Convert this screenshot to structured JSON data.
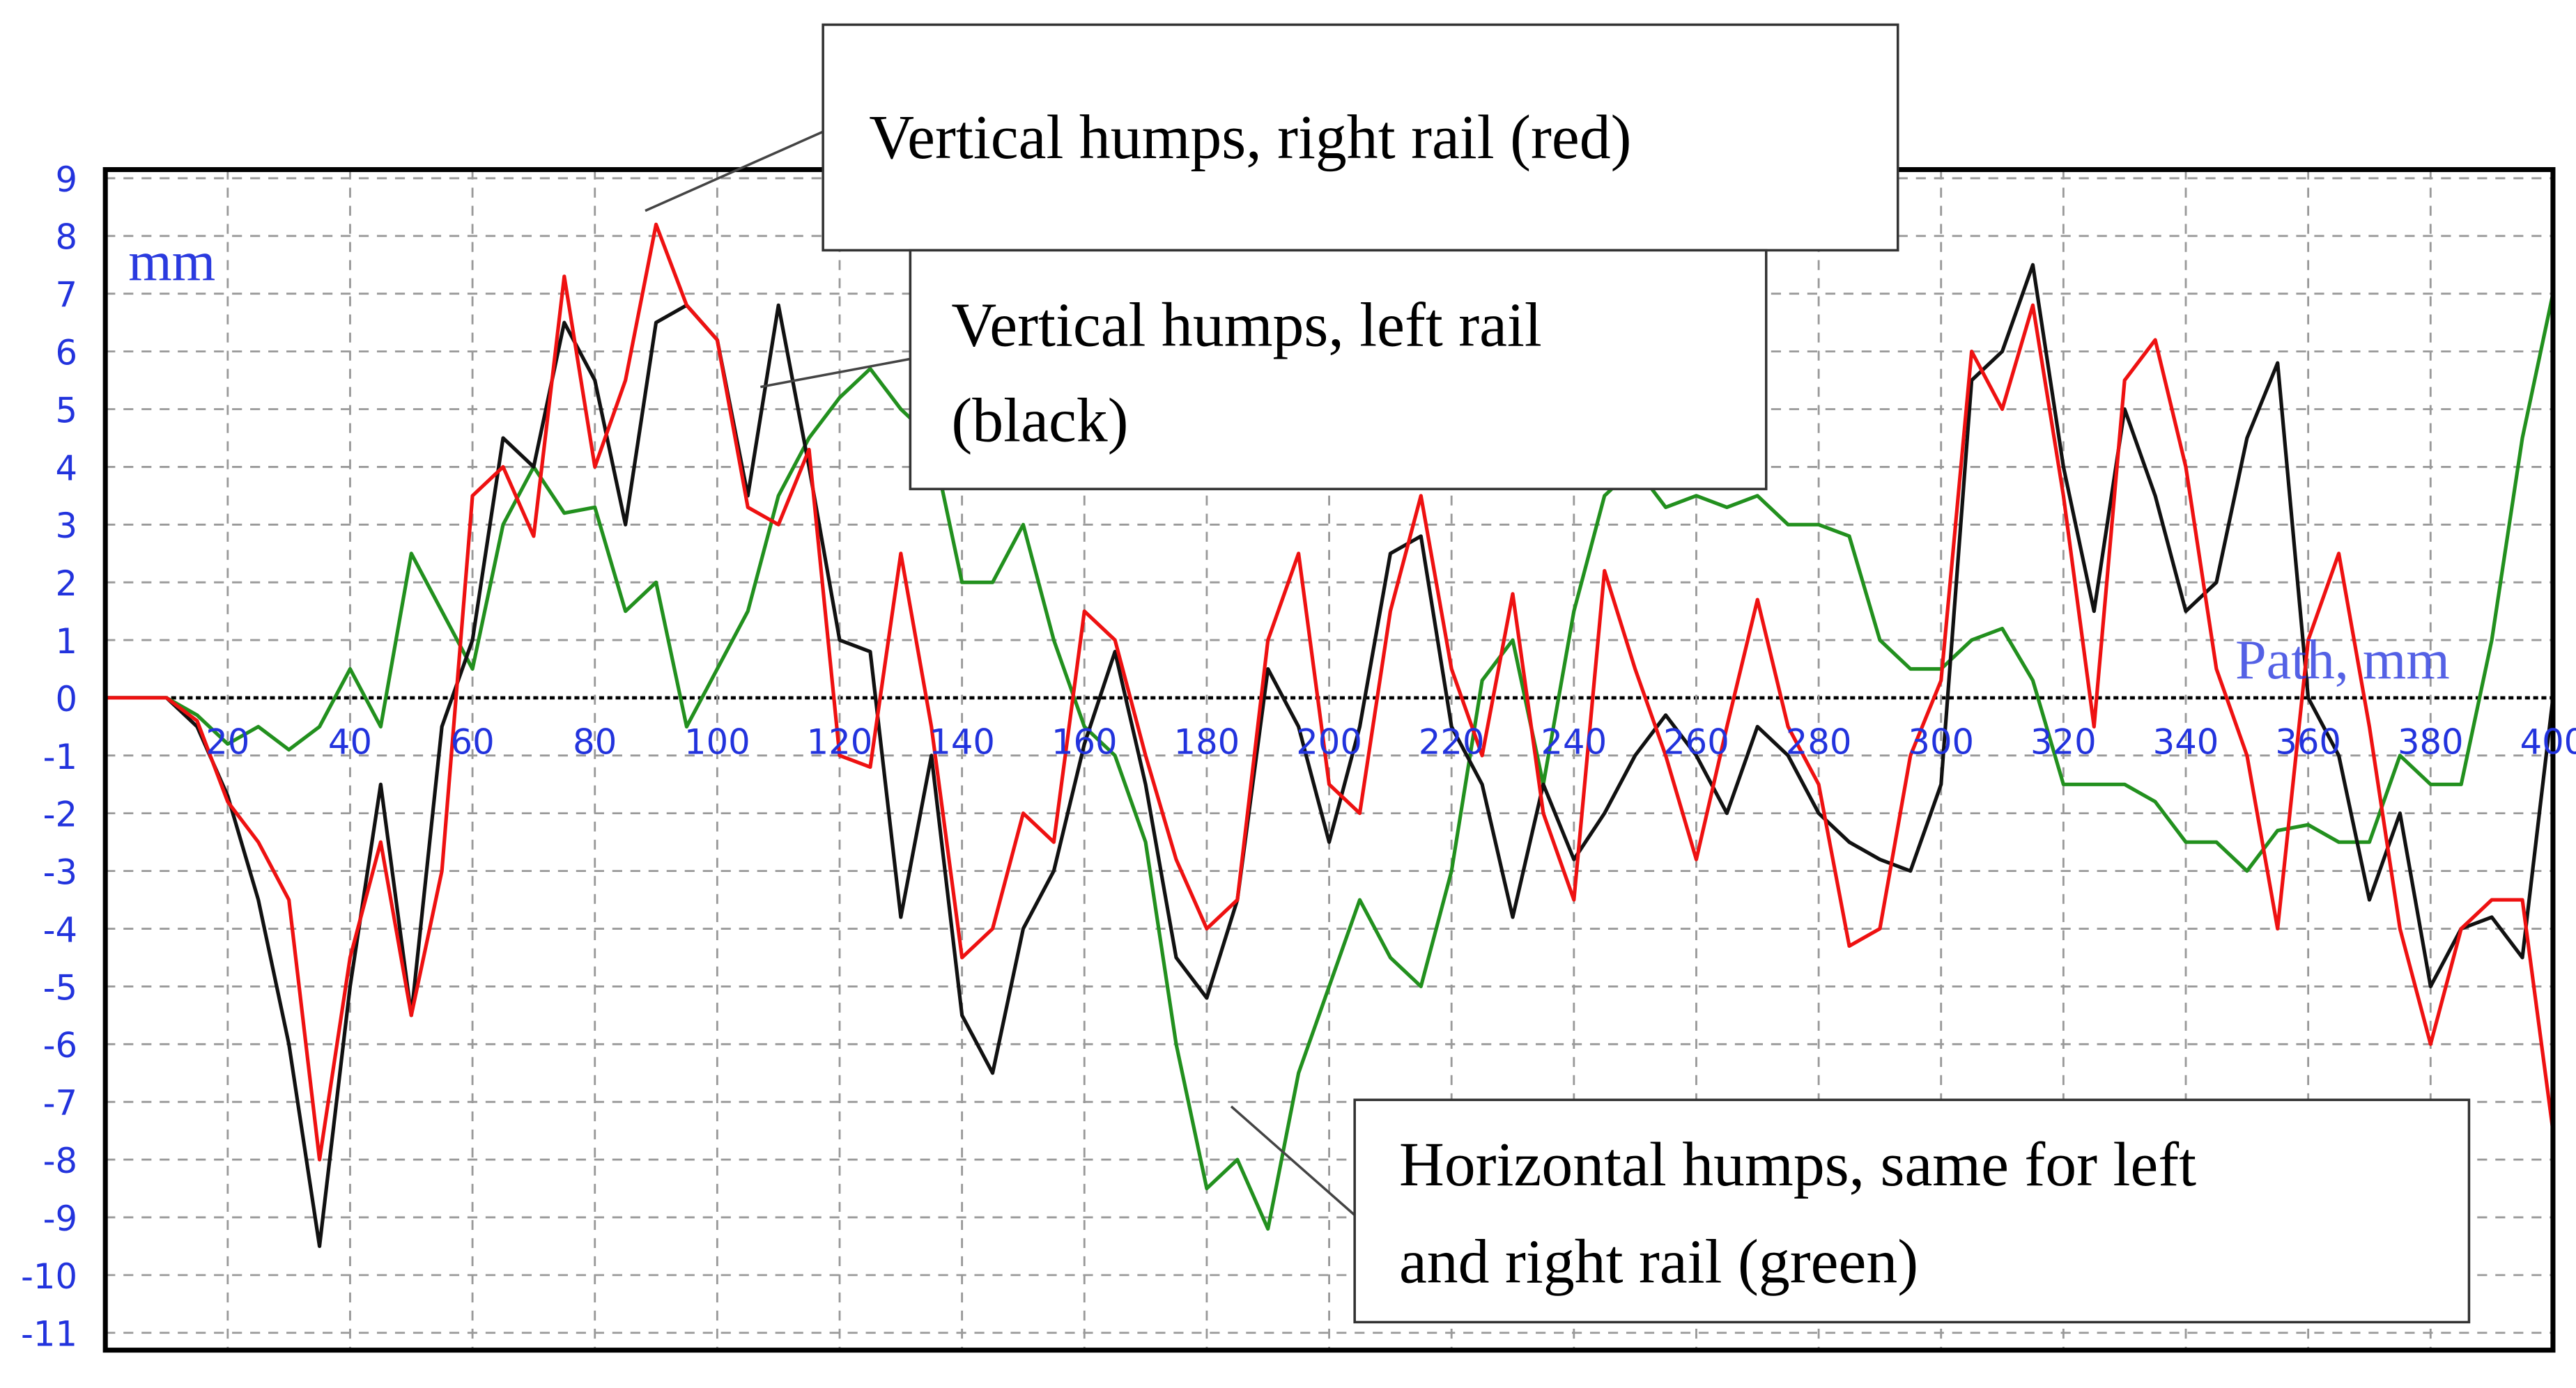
{
  "chart_data": {
    "type": "line",
    "ylabel": "mm",
    "xlabel": "Path, mm",
    "xlim": [
      0,
      400
    ],
    "ylim": [
      -11.3,
      9.15
    ],
    "xticks": [
      20,
      40,
      60,
      80,
      100,
      120,
      140,
      160,
      180,
      200,
      220,
      240,
      260,
      280,
      300,
      320,
      340,
      360,
      380,
      400
    ],
    "yticks": [
      -11,
      -10,
      -9,
      -8,
      -7,
      -6,
      -5,
      -4,
      -3,
      -2,
      -1,
      0,
      1,
      2,
      3,
      4,
      5,
      6,
      7,
      8,
      9
    ],
    "grid": true,
    "x": [
      0,
      5,
      10,
      15,
      20,
      25,
      30,
      35,
      40,
      45,
      50,
      55,
      60,
      65,
      70,
      75,
      80,
      85,
      90,
      95,
      100,
      105,
      110,
      115,
      120,
      125,
      130,
      135,
      140,
      145,
      150,
      155,
      160,
      165,
      170,
      175,
      180,
      185,
      190,
      195,
      200,
      205,
      210,
      215,
      220,
      225,
      230,
      235,
      240,
      245,
      250,
      255,
      260,
      265,
      270,
      275,
      280,
      285,
      290,
      295,
      300,
      305,
      310,
      315,
      320,
      325,
      330,
      335,
      340,
      345,
      350,
      355,
      360,
      365,
      370,
      375,
      380,
      385,
      390,
      395,
      400
    ],
    "series": [
      {
        "color": "#22901e",
        "values": [
          0,
          0,
          0,
          -0.3,
          -0.8,
          -0.5,
          -0.9,
          -0.5,
          0.5,
          -0.5,
          2.5,
          1.5,
          0.5,
          3.0,
          4.0,
          3.2,
          3.3,
          1.5,
          2.0,
          -0.5,
          0.5,
          1.5,
          3.5,
          4.5,
          5.2,
          5.7,
          5.0,
          4.5,
          2.0,
          2.0,
          3.0,
          1.0,
          -0.5,
          -1.0,
          -2.5,
          -6.0,
          -8.5,
          -8.0,
          -9.2,
          -6.5,
          -5.0,
          -3.5,
          -4.5,
          -5.0,
          -3.0,
          0.3,
          1.0,
          -1.5,
          1.5,
          3.5,
          4.0,
          3.3,
          3.5,
          3.3,
          3.5,
          3.0,
          3.0,
          2.8,
          1.0,
          0.5,
          0.5,
          1.0,
          1.2,
          0.3,
          -1.5,
          -1.5,
          -1.5,
          -1.8,
          -2.5,
          -2.5,
          -3.0,
          -2.3,
          -2.2,
          -2.5,
          -2.5,
          -1.0,
          -1.5,
          -1.5,
          1.0,
          4.5,
          7.0
        ]
      },
      {
        "color": "#111111",
        "values": [
          0,
          0,
          0,
          -0.5,
          -1.7,
          -3.5,
          -6.0,
          -9.5,
          -5.0,
          -1.5,
          -5.5,
          -0.5,
          1.0,
          4.5,
          4.0,
          6.5,
          5.5,
          3.0,
          6.5,
          6.8,
          6.2,
          3.5,
          6.8,
          4.0,
          1.0,
          0.8,
          -3.8,
          -1.0,
          -5.5,
          -6.5,
          -4.0,
          -3.0,
          -0.8,
          0.8,
          -1.5,
          -4.5,
          -5.2,
          -3.5,
          0.5,
          -0.5,
          -2.5,
          -0.5,
          2.5,
          2.8,
          -0.5,
          -1.5,
          -3.8,
          -1.5,
          -2.8,
          -2.0,
          -1.0,
          -0.3,
          -1.0,
          -2.0,
          -0.5,
          -1.0,
          -2.0,
          -2.5,
          -2.8,
          -3.0,
          -1.5,
          5.5,
          6.0,
          7.5,
          4.0,
          1.5,
          5.0,
          3.5,
          1.5,
          2.0,
          4.5,
          5.8,
          0.0,
          -1.0,
          -3.5,
          -2.0,
          -5.0,
          -4.0,
          -3.8,
          -4.5,
          0.0
        ]
      },
      {
        "color": "#ee1111",
        "values": [
          0,
          0,
          0,
          -0.4,
          -1.8,
          -2.5,
          -3.5,
          -8.0,
          -4.5,
          -2.5,
          -5.5,
          -3.0,
          3.5,
          4.0,
          2.8,
          7.3,
          4.0,
          5.5,
          8.2,
          6.8,
          6.2,
          3.3,
          3.0,
          4.3,
          -1.0,
          -1.2,
          2.5,
          -0.5,
          -4.5,
          -4.0,
          -2.0,
          -2.5,
          1.5,
          1.0,
          -1.0,
          -2.8,
          -4.0,
          -3.5,
          1.0,
          2.5,
          -1.5,
          -2.0,
          1.5,
          3.5,
          0.5,
          -1.0,
          1.8,
          -2.0,
          -3.5,
          2.2,
          0.5,
          -1.0,
          -2.8,
          -0.5,
          1.7,
          -0.5,
          -1.5,
          -4.3,
          -4.0,
          -1.0,
          0.3,
          6.0,
          5.0,
          6.8,
          3.5,
          -0.5,
          5.5,
          6.2,
          4.0,
          0.5,
          -1.0,
          -4.0,
          1.0,
          2.5,
          -0.5,
          -4.0,
          -6.0,
          -4.0,
          -3.5,
          -3.5,
          -7.5
        ]
      }
    ],
    "annotations": [
      {
        "lines": [
          "Vertical humps, right rail (red)"
        ]
      },
      {
        "lines": [
          "Vertical humps, left rail",
          "(black)"
        ]
      },
      {
        "lines": [
          "Horizontal humps, same for left",
          "and right rail (green)"
        ]
      }
    ]
  }
}
